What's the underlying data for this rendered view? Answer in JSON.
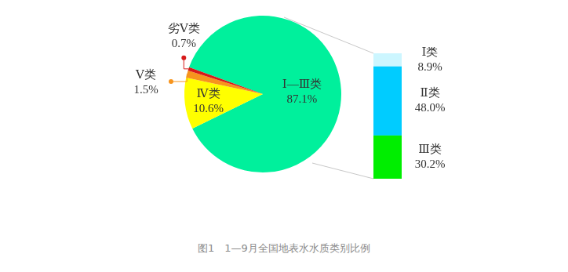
{
  "chart_data": [
    {
      "type": "pie",
      "title": "图1　1—9月全国地表水水质类别比例",
      "categories": [
        "Ⅰ—Ⅲ类",
        "Ⅳ类",
        "Ⅴ类",
        "劣Ⅴ类"
      ],
      "values": [
        87.1,
        10.6,
        1.5,
        0.7
      ],
      "value_labels": [
        "87.1%",
        "10.6%",
        "1.5%",
        "0.7%"
      ],
      "colors": [
        "#00f09c",
        "#ffff00",
        "#f7941d",
        "#d71a1a"
      ],
      "data_labels": true,
      "legend": false
    },
    {
      "type": "bar",
      "stacked": true,
      "categories": [
        null
      ],
      "series": [
        {
          "name": "Ⅰ类",
          "color": "#ccf6ff",
          "values": [
            8.9
          ],
          "value_labels": [
            "8.9%"
          ]
        },
        {
          "name": "Ⅱ类",
          "color": "#00ccff",
          "values": [
            48.0
          ],
          "value_labels": [
            "48.0%"
          ]
        },
        {
          "name": "Ⅲ类",
          "color": "#00ee00",
          "values": [
            30.2
          ],
          "value_labels": [
            "30.2%"
          ]
        }
      ],
      "ylim": [
        0,
        87.1
      ],
      "grid": false,
      "tick_labels": false,
      "data_labels": true,
      "legend": false
    }
  ]
}
